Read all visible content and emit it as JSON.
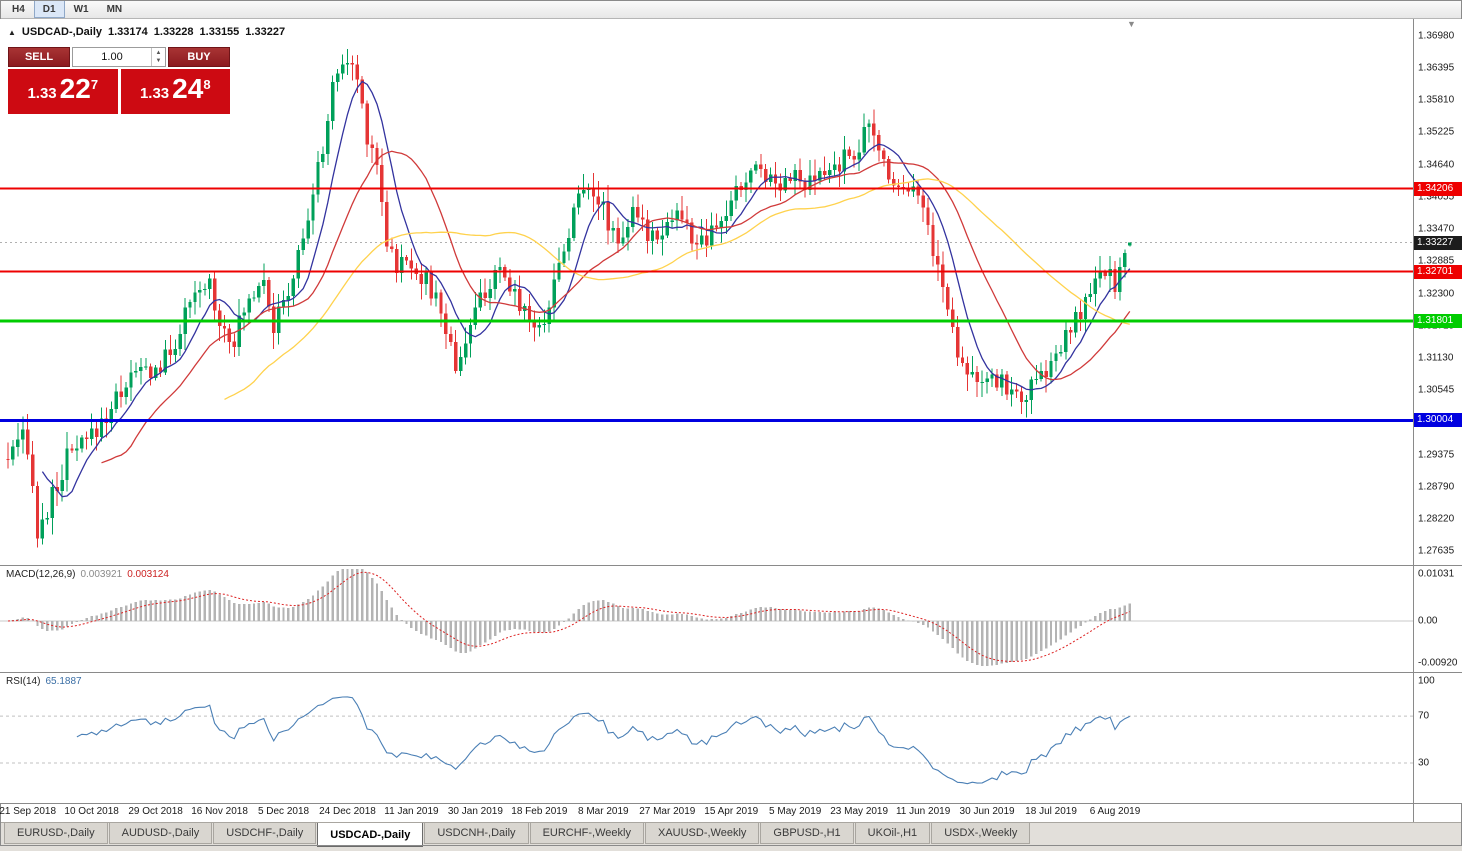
{
  "toolbar": {
    "timeframes": [
      {
        "label": "H4",
        "active": false
      },
      {
        "label": "D1",
        "active": true
      },
      {
        "label": "W1",
        "active": false
      },
      {
        "label": "MN",
        "active": false
      }
    ]
  },
  "header": {
    "symbol": "USDCAD-,Daily",
    "open": "1.33174",
    "high": "1.33228",
    "low": "1.33155",
    "close": "1.33227"
  },
  "trade_panel": {
    "sell_label": "SELL",
    "buy_label": "BUY",
    "volume": "1.00",
    "sell_price": {
      "base": "1.33",
      "pips": "22",
      "point": "7"
    },
    "buy_price": {
      "base": "1.33",
      "pips": "24",
      "point": "8"
    }
  },
  "price_axis": {
    "labels": [
      "1.36980",
      "1.36395",
      "1.35810",
      "1.35225",
      "1.34640",
      "1.34055",
      "1.33470",
      "1.32885",
      "1.32300",
      "1.31715",
      "1.31130",
      "1.30545",
      "1.29960",
      "1.29375",
      "1.28790",
      "1.28220",
      "1.27635"
    ],
    "current_price": {
      "label": "1.33227",
      "value": 1.33227,
      "color": "#1c1c1c"
    }
  },
  "levels": [
    {
      "label": "1.34206",
      "value": 1.34206,
      "color": "#ee0000",
      "thickness": 2
    },
    {
      "label": "1.32701",
      "value": 1.32701,
      "color": "#ee0000",
      "thickness": 2
    },
    {
      "label": "1.31801",
      "value": 1.31801,
      "color": "#00cc00",
      "thickness": 3
    },
    {
      "label": "1.30004",
      "value": 1.30004,
      "color": "#0000e0",
      "thickness": 3
    }
  ],
  "chart_data": {
    "type": "candlestick",
    "symbol": "USDCAD",
    "timeframe": "Daily",
    "ohlc_current": {
      "open": 1.33174,
      "high": 1.33228,
      "low": 1.33155,
      "close": 1.33227
    },
    "price_range": {
      "max": 1.3728,
      "min": 1.2738
    },
    "candle_count": 229,
    "candle_spacing": 4.92,
    "up_color": "#00a05a",
    "down_color": "#e53535",
    "close_waypoints": [
      [
        0,
        1.293
      ],
      [
        3,
        1.2965
      ],
      [
        5,
        1.29
      ],
      [
        6,
        1.279
      ],
      [
        9,
        1.286
      ],
      [
        12,
        1.293
      ],
      [
        16,
        1.296
      ],
      [
        20,
        1.301
      ],
      [
        24,
        1.307
      ],
      [
        27,
        1.309
      ],
      [
        30,
        1.309
      ],
      [
        33,
        1.312
      ],
      [
        36,
        1.319
      ],
      [
        39,
        1.323
      ],
      [
        41,
        1.325
      ],
      [
        43,
        1.318
      ],
      [
        46,
        1.315
      ],
      [
        49,
        1.322
      ],
      [
        52,
        1.327
      ],
      [
        54,
        1.317
      ],
      [
        57,
        1.323
      ],
      [
        60,
        1.333
      ],
      [
        63,
        1.345
      ],
      [
        65,
        1.355
      ],
      [
        67,
        1.364
      ],
      [
        69,
        1.365
      ],
      [
        71,
        1.362
      ],
      [
        73,
        1.352
      ],
      [
        75,
        1.347
      ],
      [
        77,
        1.333
      ],
      [
        79,
        1.328
      ],
      [
        82,
        1.329
      ],
      [
        85,
        1.325
      ],
      [
        88,
        1.32
      ],
      [
        91,
        1.31
      ],
      [
        94,
        1.317
      ],
      [
        97,
        1.324
      ],
      [
        100,
        1.326
      ],
      [
        103,
        1.323
      ],
      [
        106,
        1.319
      ],
      [
        108,
        1.316
      ],
      [
        111,
        1.325
      ],
      [
        115,
        1.338
      ],
      [
        118,
        1.344
      ],
      [
        121,
        1.338
      ],
      [
        124,
        1.333
      ],
      [
        127,
        1.337
      ],
      [
        130,
        1.334
      ],
      [
        133,
        1.335
      ],
      [
        136,
        1.338
      ],
      [
        139,
        1.333
      ],
      [
        142,
        1.332
      ],
      [
        145,
        1.336
      ],
      [
        148,
        1.341
      ],
      [
        151,
        1.345
      ],
      [
        153,
        1.346
      ],
      [
        156,
        1.343
      ],
      [
        159,
        1.345
      ],
      [
        162,
        1.342
      ],
      [
        165,
        1.344
      ],
      [
        168,
        1.346
      ],
      [
        171,
        1.348
      ],
      [
        173,
        1.35
      ],
      [
        175,
        1.353
      ],
      [
        178,
        1.347
      ],
      [
        181,
        1.342
      ],
      [
        184,
        1.344
      ],
      [
        187,
        1.335
      ],
      [
        190,
        1.324
      ],
      [
        193,
        1.313
      ],
      [
        196,
        1.3085
      ],
      [
        199,
        1.306
      ],
      [
        202,
        1.3075
      ],
      [
        205,
        1.304
      ],
      [
        208,
        1.3055
      ],
      [
        211,
        1.309
      ],
      [
        214,
        1.313
      ],
      [
        217,
        1.318
      ],
      [
        220,
        1.323
      ],
      [
        223,
        1.327
      ],
      [
        225,
        1.325
      ],
      [
        228,
        1.3322
      ]
    ],
    "moving_averages": [
      {
        "period": 8,
        "color": "#33339f"
      },
      {
        "period": 20,
        "color": "#d03a3a"
      },
      {
        "period": 45,
        "color": "#ffd24d"
      }
    ],
    "x_labels": [
      "21 Sep 2018",
      "10 Oct 2018",
      "29 Oct 2018",
      "16 Nov 2018",
      "5 Dec 2018",
      "24 Dec 2018",
      "11 Jan 2019",
      "30 Jan 2019",
      "18 Feb 2019",
      "8 Mar 2019",
      "27 Mar 2019",
      "15 Apr 2019",
      "5 May 2019",
      "23 May 2019",
      "11 Jun 2019",
      "30 Jun 2019",
      "18 Jul 2019",
      "6 Aug 2019"
    ],
    "indicators": [
      {
        "name": "MACD",
        "params": "12,26,9",
        "values": [
          0.003921,
          0.003124
        ]
      },
      {
        "name": "RSI",
        "params": "14",
        "values": [
          65.1887
        ]
      }
    ]
  },
  "macd_panel": {
    "name": "MACD(12,26,9)",
    "value": "0.003921",
    "signal": "0.003124",
    "scale": {
      "top": "0.01031",
      "zero": "0.00",
      "bottom": "-0.00920"
    }
  },
  "rsi_panel": {
    "name": "RSI(14)",
    "value": "65.1887",
    "scale": [
      "100",
      "70",
      "30"
    ],
    "level_lines": [
      70,
      30
    ]
  },
  "tabs": [
    {
      "label": "EURUSD-,Daily",
      "active": false
    },
    {
      "label": "AUDUSD-,Daily",
      "active": false
    },
    {
      "label": "USDCHF-,Daily",
      "active": false
    },
    {
      "label": "USDCAD-,Daily",
      "active": true
    },
    {
      "label": "USDCNH-,Daily",
      "active": false
    },
    {
      "label": "EURCHF-,Weekly",
      "active": false
    },
    {
      "label": "XAUUSD-,Weekly",
      "active": false
    },
    {
      "label": "GBPUSD-,H1",
      "active": false
    },
    {
      "label": "UKOil-,H1",
      "active": false
    },
    {
      "label": "USDX-,Weekly",
      "active": false
    }
  ]
}
